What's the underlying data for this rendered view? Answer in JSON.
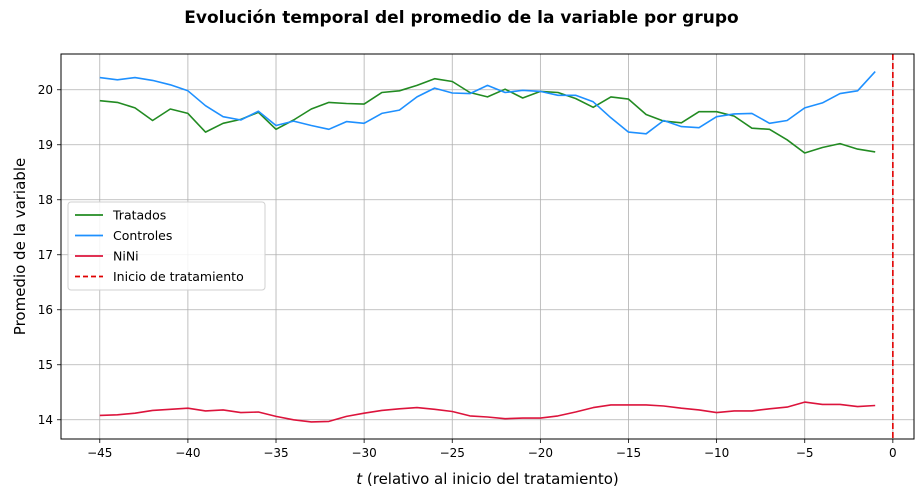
{
  "chart_data": {
    "type": "line",
    "title": "Evolución temporal del promedio de la variable por grupo",
    "xlabel_italic": "t",
    "xlabel_rest": " (relativo al inicio del tratamiento)",
    "ylabel": "Promedio de la variable",
    "xlim": [
      -47.2,
      1.2
    ],
    "ylim": [
      13.65,
      20.65
    ],
    "xticks": [
      -45,
      -40,
      -35,
      -30,
      -25,
      -20,
      -15,
      -10,
      -5,
      0
    ],
    "yticks": [
      14,
      15,
      16,
      17,
      18,
      19,
      20
    ],
    "grid": true,
    "legend_position": "center-left",
    "x": [
      -45,
      -44,
      -43,
      -42,
      -41,
      -40,
      -39,
      -38,
      -37,
      -36,
      -35,
      -34,
      -33,
      -32,
      -31,
      -30,
      -29,
      -28,
      -27,
      -26,
      -25,
      -24,
      -23,
      -22,
      -21,
      -20,
      -19,
      -18,
      -17,
      -16,
      -15,
      -14,
      -13,
      -12,
      -11,
      -10,
      -9,
      -8,
      -7,
      -6,
      -5,
      -4,
      -3,
      -2,
      -1
    ],
    "series": [
      {
        "name": "Tratados",
        "color": "#228b22",
        "values": [
          19.8,
          19.77,
          19.67,
          19.44,
          19.65,
          19.57,
          19.23,
          19.39,
          19.46,
          19.59,
          19.28,
          19.45,
          19.65,
          19.77,
          19.75,
          19.74,
          19.95,
          19.98,
          20.08,
          20.2,
          20.15,
          19.95,
          19.87,
          20.01,
          19.85,
          19.97,
          19.95,
          19.84,
          19.68,
          19.87,
          19.83,
          19.55,
          19.43,
          19.4,
          19.6,
          19.6,
          19.52,
          19.3,
          19.28,
          19.09,
          18.85,
          18.95,
          19.02,
          18.92,
          18.87
        ]
      },
      {
        "name": "Controles",
        "color": "#1e90ff",
        "values": [
          20.22,
          20.18,
          20.22,
          20.17,
          20.09,
          19.98,
          19.71,
          19.51,
          19.45,
          19.61,
          19.35,
          19.43,
          19.35,
          19.28,
          19.42,
          19.39,
          19.57,
          19.63,
          19.87,
          20.03,
          19.94,
          19.93,
          20.08,
          19.95,
          19.99,
          19.97,
          19.9,
          19.9,
          19.78,
          19.49,
          19.23,
          19.2,
          19.44,
          19.33,
          19.31,
          19.51,
          19.56,
          19.57,
          19.39,
          19.44,
          19.67,
          19.76,
          19.93,
          19.98,
          20.33
        ]
      },
      {
        "name": "NiNi",
        "color": "#dc143c",
        "values": [
          14.08,
          14.09,
          14.12,
          14.17,
          14.19,
          14.21,
          14.16,
          14.18,
          14.13,
          14.14,
          14.06,
          14.0,
          13.96,
          13.97,
          14.06,
          14.12,
          14.17,
          14.2,
          14.22,
          14.19,
          14.15,
          14.07,
          14.05,
          14.02,
          14.03,
          14.03,
          14.07,
          14.14,
          14.22,
          14.27,
          14.27,
          14.27,
          14.25,
          14.21,
          14.18,
          14.13,
          14.16,
          14.16,
          14.2,
          14.23,
          14.32,
          14.28,
          14.28,
          14.24,
          14.26
        ]
      }
    ],
    "vline": {
      "x": 0,
      "name": "Inicio de tratamiento",
      "color": "#e00000",
      "style": "dashed"
    }
  }
}
